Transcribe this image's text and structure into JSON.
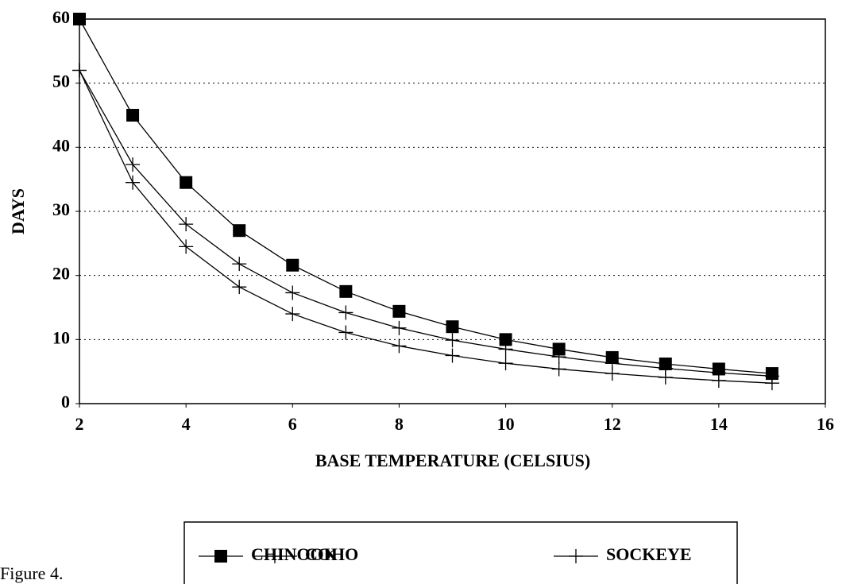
{
  "chart_data": {
    "type": "line",
    "xlabel": "BASE TEMPERATURE (CELSIUS)",
    "ylabel": "DAYS",
    "caption": "Figure 4.",
    "x": [
      2,
      3,
      4,
      5,
      6,
      7,
      8,
      9,
      10,
      11,
      12,
      13,
      14,
      15
    ],
    "series": [
      {
        "name": "CHINOOK",
        "color": "#000000",
        "marker": "square",
        "values": [
          60,
          45,
          34.5,
          27,
          21.6,
          17.5,
          14.4,
          12,
          10,
          8.5,
          7.2,
          6.2,
          5.4,
          4.7
        ]
      },
      {
        "name": "COHO",
        "color": "#000000",
        "marker": "plus",
        "values": [
          52,
          37.3,
          28,
          21.8,
          17.3,
          14.2,
          11.8,
          9.9,
          8.5,
          7.3,
          6.3,
          5.5,
          4.8,
          4.3
        ]
      },
      {
        "name": "SOCKEYE",
        "color": "#000000",
        "marker": "plus",
        "values": [
          52,
          34.5,
          24.5,
          18.2,
          14,
          11.1,
          9,
          7.5,
          6.3,
          5.4,
          4.7,
          4.1,
          3.6,
          3.2
        ]
      }
    ],
    "xlim": [
      2,
      16
    ],
    "xticks": [
      2,
      4,
      6,
      8,
      10,
      12,
      14,
      16
    ],
    "ylim": [
      0,
      60
    ],
    "yticks": [
      0,
      10,
      20,
      30,
      40,
      50,
      60
    ],
    "grid": true,
    "legend": "bottom"
  }
}
